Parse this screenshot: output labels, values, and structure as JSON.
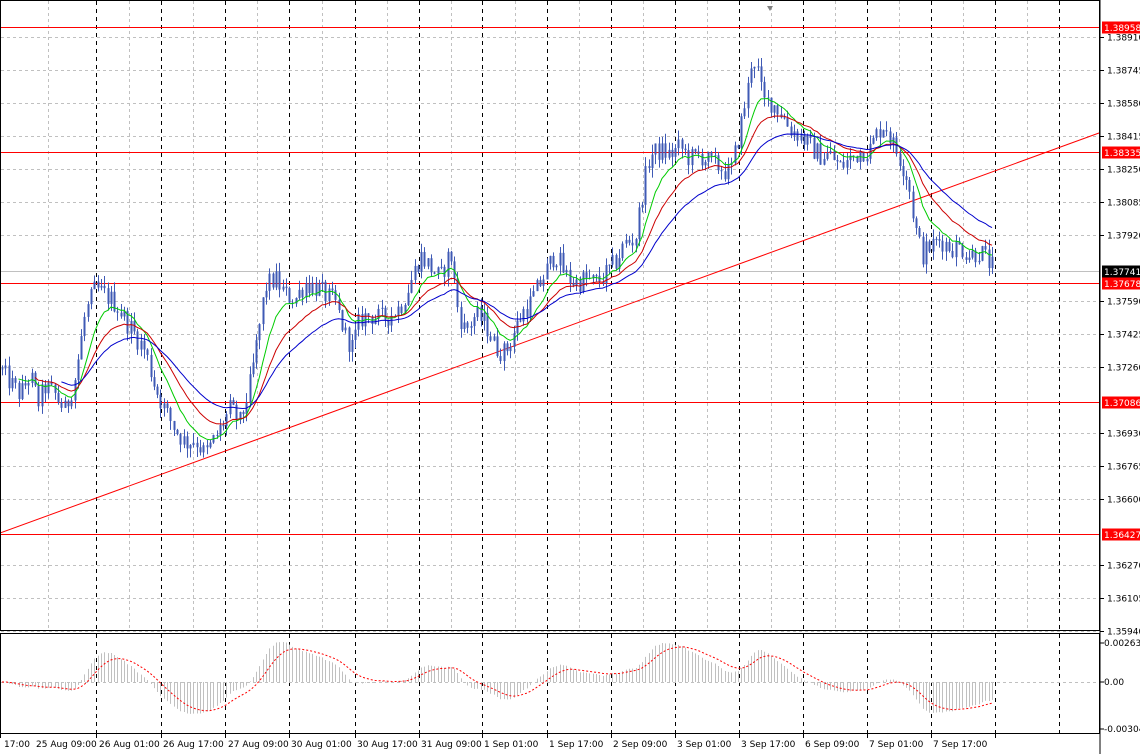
{
  "chart_data": [
    {
      "type": "candlestick",
      "title": "",
      "price_axis_labels": [
        "1.38910",
        "1.38745",
        "1.38580",
        "1.38415",
        "1.38250",
        "1.38085",
        "1.37920",
        "1.37590",
        "1.37425",
        "1.37260",
        "1.36930",
        "1.36765",
        "1.36600",
        "1.36270",
        "1.36105",
        "1.35940"
      ],
      "time_axis_labels": [
        "17:00",
        "25 Aug 09:00",
        "26 Aug 01:00",
        "26 Aug 17:00",
        "27 Aug 09:00",
        "30 Aug 01:00",
        "30 Aug 17:00",
        "31 Aug 09:00",
        "1 Sep 01:00",
        "1 Sep 17:00",
        "2 Sep 09:00",
        "3 Sep 01:00",
        "3 Sep 17:00",
        "6 Sep 09:00",
        "7 Sep 01:00",
        "7 Sep 17:00"
      ],
      "horizontal_levels": [
        {
          "value": "1.38958",
          "color": "#ff0000"
        },
        {
          "value": "1.38335",
          "color": "#ff0000"
        },
        {
          "value": "1.37678",
          "color": "#ff0000"
        },
        {
          "value": "1.37086",
          "color": "#ff0000"
        },
        {
          "value": "1.36427",
          "color": "#ff0000"
        }
      ],
      "current_price": {
        "value": "1.37741",
        "color": "#000000"
      },
      "trend_line": {
        "start_price": 1.3643,
        "end_price": 1.3843,
        "color": "#ff0000"
      },
      "close_anchors": [
        [
          0,
          1.3725
        ],
        [
          10,
          1.3718
        ],
        [
          20,
          1.3712
        ],
        [
          30,
          1.3722
        ],
        [
          38,
          1.3708
        ],
        [
          45,
          1.3716
        ],
        [
          55,
          1.3712
        ],
        [
          65,
          1.3704
        ],
        [
          75,
          1.3721
        ],
        [
          85,
          1.3752
        ],
        [
          95,
          1.3765
        ],
        [
          105,
          1.3762
        ],
        [
          115,
          1.3758
        ],
        [
          125,
          1.375
        ],
        [
          135,
          1.3742
        ],
        [
          145,
          1.3734
        ],
        [
          155,
          1.3716
        ],
        [
          165,
          1.3704
        ],
        [
          175,
          1.3695
        ],
        [
          185,
          1.3688
        ],
        [
          195,
          1.369
        ],
        [
          205,
          1.3682
        ],
        [
          212,
          1.3688
        ],
        [
          220,
          1.3695
        ],
        [
          230,
          1.3705
        ],
        [
          240,
          1.3698
        ],
        [
          250,
          1.3718
        ],
        [
          258,
          1.3742
        ],
        [
          265,
          1.3766
        ],
        [
          275,
          1.377
        ],
        [
          285,
          1.3762
        ],
        [
          295,
          1.376
        ],
        [
          305,
          1.3768
        ],
        [
          315,
          1.3766
        ],
        [
          325,
          1.3762
        ],
        [
          335,
          1.3758
        ],
        [
          345,
          1.3742
        ],
        [
          352,
          1.3736
        ],
        [
          360,
          1.375
        ],
        [
          370,
          1.3752
        ],
        [
          380,
          1.375
        ],
        [
          390,
          1.3752
        ],
        [
          400,
          1.3756
        ],
        [
          410,
          1.3768
        ],
        [
          420,
          1.3782
        ],
        [
          430,
          1.3776
        ],
        [
          440,
          1.377
        ],
        [
          450,
          1.3784
        ],
        [
          458,
          1.3754
        ],
        [
          465,
          1.3744
        ],
        [
          475,
          1.3752
        ],
        [
          485,
          1.3748
        ],
        [
          495,
          1.3736
        ],
        [
          505,
          1.3733
        ],
        [
          515,
          1.3745
        ],
        [
          522,
          1.3753
        ],
        [
          530,
          1.3758
        ],
        [
          540,
          1.3768
        ],
        [
          548,
          1.3776
        ],
        [
          555,
          1.3783
        ],
        [
          565,
          1.3772
        ],
        [
          575,
          1.3768
        ],
        [
          585,
          1.377
        ],
        [
          595,
          1.3768
        ],
        [
          605,
          1.3772
        ],
        [
          615,
          1.3778
        ],
        [
          625,
          1.3788
        ],
        [
          635,
          1.379
        ],
        [
          643,
          1.3815
        ],
        [
          650,
          1.3832
        ],
        [
          660,
          1.3834
        ],
        [
          670,
          1.3832
        ],
        [
          680,
          1.3836
        ],
        [
          690,
          1.383
        ],
        [
          700,
          1.3832
        ],
        [
          710,
          1.3828
        ],
        [
          720,
          1.3826
        ],
        [
          730,
          1.3822
        ],
        [
          740,
          1.3845
        ],
        [
          748,
          1.3866
        ],
        [
          752,
          1.3882
        ],
        [
          757,
          1.3876
        ],
        [
          763,
          1.3858
        ],
        [
          770,
          1.3859
        ],
        [
          780,
          1.3854
        ],
        [
          790,
          1.3845
        ],
        [
          800,
          1.3842
        ],
        [
          810,
          1.3836
        ],
        [
          820,
          1.3832
        ],
        [
          830,
          1.3832
        ],
        [
          840,
          1.3826
        ],
        [
          850,
          1.383
        ],
        [
          860,
          1.3834
        ],
        [
          870,
          1.3835
        ],
        [
          878,
          1.3844
        ],
        [
          885,
          1.3848
        ],
        [
          892,
          1.3838
        ],
        [
          900,
          1.383
        ],
        [
          908,
          1.382
        ],
        [
          915,
          1.3796
        ],
        [
          922,
          1.3782
        ],
        [
          930,
          1.3786
        ],
        [
          940,
          1.379
        ],
        [
          950,
          1.3786
        ],
        [
          960,
          1.3786
        ],
        [
          970,
          1.3782
        ],
        [
          980,
          1.3784
        ],
        [
          992,
          1.3776
        ]
      ]
    },
    {
      "type": "oscillator",
      "scale_labels": [
        "0.002635",
        "0.00",
        "-0.00304"
      ],
      "zero_line": 0.0
    }
  ],
  "colors": {
    "candles": "#3f5ab5",
    "ma_fast": "#00cc00",
    "ma_mid": "#cc0000",
    "ma_slow": "#0000cc",
    "level_line": "#ff0000",
    "grid": "#c0c0c0",
    "signal": "#ff0000",
    "histogram": "#c0c0c0"
  }
}
